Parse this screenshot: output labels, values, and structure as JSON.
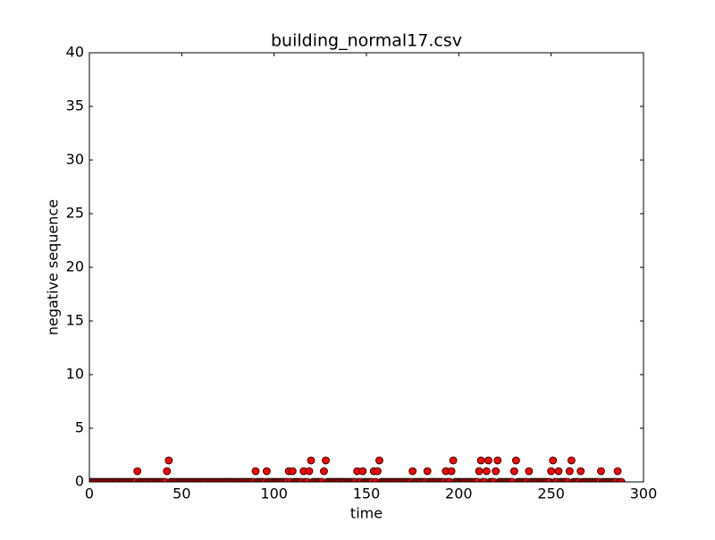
{
  "chart_data": {
    "type": "scatter",
    "title": "building_normal17.csv",
    "x_label": "time",
    "y_label": "negative sequence",
    "xlim": [
      0,
      300
    ],
    "ylim": [
      0,
      40
    ],
    "xticks": [
      0,
      50,
      100,
      150,
      200,
      250,
      300
    ],
    "yticks": [
      0,
      5,
      10,
      15,
      20,
      25,
      30,
      35,
      40
    ],
    "color": "#ff0000",
    "x": [
      0,
      1,
      2,
      3,
      4,
      5,
      6,
      7,
      8,
      9,
      10,
      11,
      12,
      13,
      14,
      15,
      16,
      17,
      18,
      19,
      20,
      21,
      22,
      23,
      24,
      25,
      26,
      27,
      28,
      29,
      30,
      31,
      32,
      33,
      34,
      35,
      36,
      37,
      38,
      39,
      40,
      41,
      42,
      43,
      44,
      45,
      46,
      47,
      48,
      49,
      50,
      51,
      52,
      53,
      54,
      55,
      56,
      57,
      58,
      59,
      60,
      61,
      62,
      63,
      64,
      65,
      66,
      67,
      68,
      69,
      70,
      71,
      72,
      73,
      74,
      75,
      76,
      77,
      78,
      79,
      80,
      81,
      82,
      83,
      84,
      85,
      86,
      87,
      88,
      89,
      90,
      91,
      92,
      93,
      94,
      95,
      96,
      97,
      98,
      99,
      100,
      101,
      102,
      103,
      104,
      105,
      106,
      107,
      108,
      109,
      110,
      111,
      112,
      113,
      114,
      115,
      116,
      117,
      118,
      119,
      120,
      121,
      122,
      123,
      124,
      125,
      126,
      127,
      128,
      129,
      130,
      131,
      132,
      133,
      134,
      135,
      136,
      137,
      138,
      139,
      140,
      141,
      142,
      143,
      144,
      145,
      146,
      147,
      148,
      149,
      150,
      151,
      152,
      153,
      154,
      155,
      156,
      157,
      158,
      159,
      160,
      161,
      162,
      163,
      164,
      165,
      166,
      167,
      168,
      169,
      170,
      171,
      172,
      173,
      174,
      175,
      176,
      177,
      178,
      179,
      180,
      181,
      182,
      183,
      184,
      185,
      186,
      187,
      188,
      189,
      190,
      191,
      192,
      193,
      194,
      195,
      196,
      197,
      198,
      199,
      200,
      201,
      202,
      203,
      204,
      205,
      206,
      207,
      208,
      209,
      210,
      211,
      212,
      213,
      214,
      215,
      216,
      217,
      218,
      219,
      220,
      221,
      222,
      223,
      224,
      225,
      226,
      227,
      228,
      229,
      230,
      231,
      232,
      233,
      234,
      235,
      236,
      237,
      238,
      239,
      240,
      241,
      242,
      243,
      244,
      245,
      246,
      247,
      248,
      249,
      250,
      251,
      252,
      253,
      254,
      255,
      256,
      257,
      258,
      259,
      260,
      261,
      262,
      263,
      264,
      265,
      266,
      267,
      268,
      269,
      270,
      271,
      272,
      273,
      274,
      275,
      276,
      277,
      278,
      279,
      280,
      281,
      282,
      283,
      284,
      285,
      286,
      287,
      288
    ],
    "values": [
      0,
      0,
      0,
      0,
      0,
      0,
      0,
      0,
      0,
      0,
      0,
      0,
      0,
      0,
      0,
      0,
      0,
      0,
      0,
      0,
      0,
      0,
      0,
      0,
      0,
      0,
      1,
      0,
      0,
      0,
      0,
      0,
      0,
      0,
      0,
      0,
      0,
      0,
      0,
      0,
      0,
      0,
      1,
      2,
      0,
      0,
      0,
      0,
      0,
      0,
      0,
      0,
      0,
      0,
      0,
      0,
      0,
      0,
      0,
      0,
      0,
      0,
      0,
      0,
      0,
      0,
      0,
      0,
      0,
      0,
      0,
      0,
      0,
      0,
      0,
      0,
      0,
      0,
      0,
      0,
      0,
      0,
      0,
      0,
      0,
      0,
      0,
      0,
      0,
      0,
      1,
      0,
      0,
      0,
      0,
      0,
      1,
      0,
      0,
      0,
      0,
      0,
      0,
      0,
      0,
      0,
      0,
      0,
      1,
      0,
      1,
      0,
      0,
      0,
      0,
      0,
      1,
      0,
      0,
      1,
      2,
      0,
      0,
      0,
      0,
      0,
      0,
      1,
      2,
      0,
      0,
      0,
      0,
      0,
      0,
      0,
      0,
      0,
      0,
      0,
      0,
      0,
      0,
      0,
      0,
      1,
      0,
      0,
      1,
      0,
      0,
      0,
      0,
      0,
      1,
      0,
      1,
      2,
      0,
      0,
      0,
      0,
      0,
      0,
      0,
      0,
      0,
      0,
      0,
      0,
      0,
      0,
      0,
      0,
      0,
      1,
      0,
      0,
      0,
      0,
      0,
      0,
      0,
      1,
      0,
      0,
      0,
      0,
      0,
      0,
      0,
      0,
      0,
      1,
      0,
      0,
      1,
      2,
      0,
      0,
      0,
      0,
      0,
      0,
      0,
      0,
      0,
      0,
      0,
      0,
      0,
      1,
      2,
      0,
      0,
      1,
      2,
      0,
      0,
      0,
      1,
      2,
      0,
      0,
      0,
      0,
      0,
      0,
      0,
      0,
      1,
      2,
      0,
      0,
      0,
      0,
      0,
      0,
      1,
      0,
      0,
      0,
      0,
      0,
      0,
      0,
      0,
      0,
      0,
      0,
      1,
      2,
      0,
      0,
      1,
      0,
      0,
      0,
      0,
      0,
      1,
      2,
      0,
      0,
      0,
      0,
      1,
      0,
      0,
      0,
      0,
      0,
      0,
      0,
      0,
      0,
      0,
      1,
      0,
      0,
      0,
      0,
      0,
      0,
      0,
      0,
      1,
      0,
      0
    ]
  }
}
